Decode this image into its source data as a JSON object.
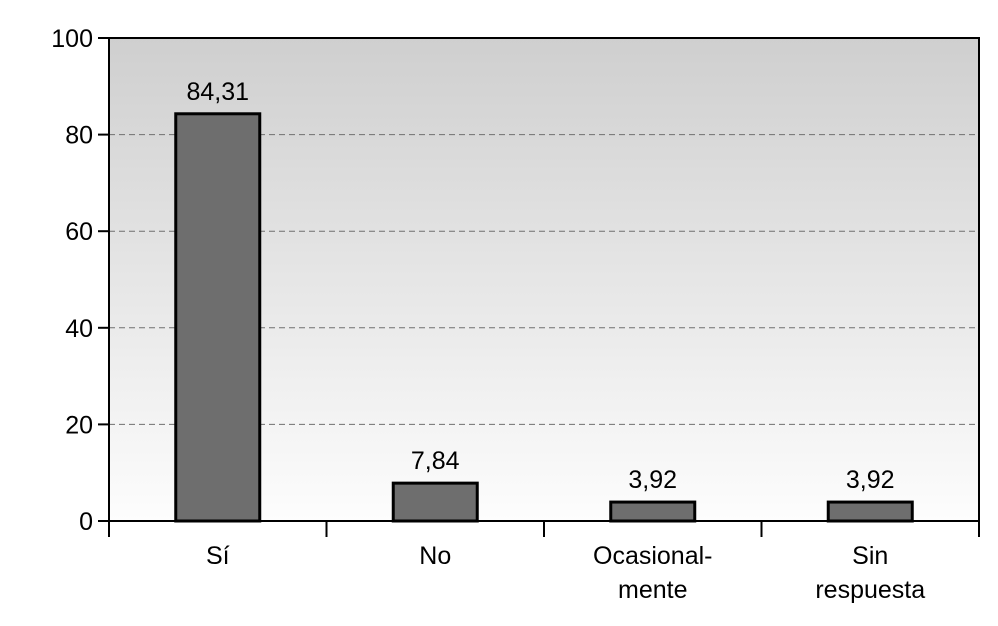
{
  "chart_data": {
    "type": "bar",
    "categories": [
      [
        "Sí"
      ],
      [
        "No"
      ],
      [
        "Ocasional-",
        "mente"
      ],
      [
        "Sin",
        "respuesta"
      ]
    ],
    "values": [
      84.31,
      7.84,
      3.92,
      3.92
    ],
    "value_labels": [
      "84,31",
      "7,84",
      "3,92",
      "3,92"
    ],
    "ylim": [
      0,
      100
    ],
    "yticks": [
      0,
      20,
      40,
      60,
      80,
      100
    ],
    "ytick_labels": [
      "0",
      "20",
      "40",
      "60",
      "80",
      "100"
    ],
    "grid": "horizontal dashed",
    "title": "",
    "xlabel": "",
    "ylabel": "",
    "colors": {
      "bar_fill": "#6e6e6e",
      "bar_stroke": "#000000",
      "plot_bg_top": "#cfcfcf",
      "plot_bg_bottom": "#fdfdfd",
      "grid": "#707070"
    }
  }
}
